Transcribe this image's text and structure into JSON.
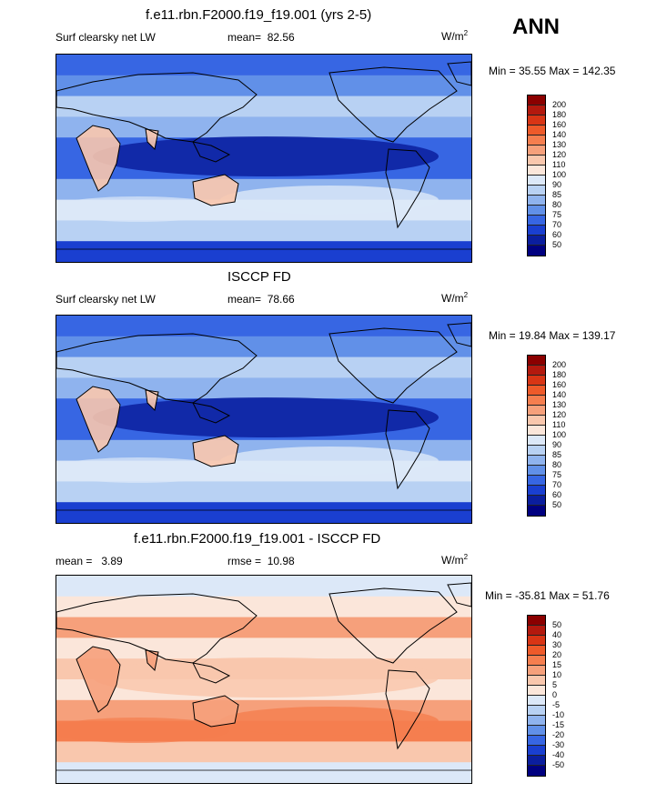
{
  "header": {
    "season": "ANN"
  },
  "panels": [
    {
      "title": "f.e11.rbn.F2000.f19_f19.001 (yrs 2-5)",
      "variable": "Surf clearsky net LW",
      "stat_label": "mean=",
      "stat_value": "82.56",
      "units": "W/m",
      "units_sup": "2",
      "min_max": "Min =  35.55 Max = 142.35",
      "palette": "abs",
      "levels": [
        "200",
        "180",
        "160",
        "140",
        "130",
        "120",
        "110",
        "100",
        "90",
        "85",
        "80",
        "75",
        "70",
        "60",
        "50"
      ]
    },
    {
      "title": "ISCCP FD",
      "variable": "Surf clearsky net LW",
      "stat_label": "mean=",
      "stat_value": "78.66",
      "units": "W/m",
      "units_sup": "2",
      "min_max": "Min =  19.84 Max = 139.17",
      "palette": "abs",
      "levels": [
        "200",
        "180",
        "160",
        "140",
        "130",
        "120",
        "110",
        "100",
        "90",
        "85",
        "80",
        "75",
        "70",
        "60",
        "50"
      ]
    },
    {
      "title": "f.e11.rbn.F2000.f19_f19.001 - ISCCP FD",
      "variable": "",
      "stat_label": "mean =",
      "stat_value": "3.89",
      "stat2_label": "rmse =",
      "stat2_value": "10.98",
      "units": "W/m",
      "units_sup": "2",
      "min_max": "Min = -35.81 Max =  51.76",
      "palette": "diff",
      "levels": [
        "50",
        "40",
        "30",
        "20",
        "15",
        "10",
        "5",
        "0",
        "-5",
        "-10",
        "-15",
        "-20",
        "-30",
        "-40",
        "-50"
      ]
    }
  ],
  "palettes": {
    "abs": [
      "#8b0000",
      "#b3190e",
      "#d83515",
      "#ee5a2a",
      "#f57e4f",
      "#f6a07b",
      "#f9c7ad",
      "#fbe6da",
      "#dce8f8",
      "#b8d1f3",
      "#8fb3ee",
      "#6190e8",
      "#3766e3",
      "#1a3fd0",
      "#0b1e9e",
      "#000080"
    ],
    "diff": [
      "#8b0000",
      "#b3190e",
      "#d83515",
      "#ee5a2a",
      "#f57e4f",
      "#f6a07b",
      "#f9c7ad",
      "#fbe6da",
      "#dce8f8",
      "#b8d1f3",
      "#8fb3ee",
      "#6190e8",
      "#3766e3",
      "#1a3fd0",
      "#0b1e9e",
      "#000080"
    ]
  },
  "chart_data": {
    "type": "heatmap",
    "description_fields": "three global lon-lat contour maps with discrete colorbars",
    "panels": [
      {
        "name": "model",
        "mean": 82.56,
        "min": 35.55,
        "max": 142.35
      },
      {
        "name": "ISCCP FD",
        "mean": 78.66,
        "min": 19.84,
        "max": 139.17
      },
      {
        "name": "model - ISCCP FD",
        "mean": 3.89,
        "rmse": 10.98,
        "min": -35.81,
        "max": 51.76
      }
    ]
  }
}
